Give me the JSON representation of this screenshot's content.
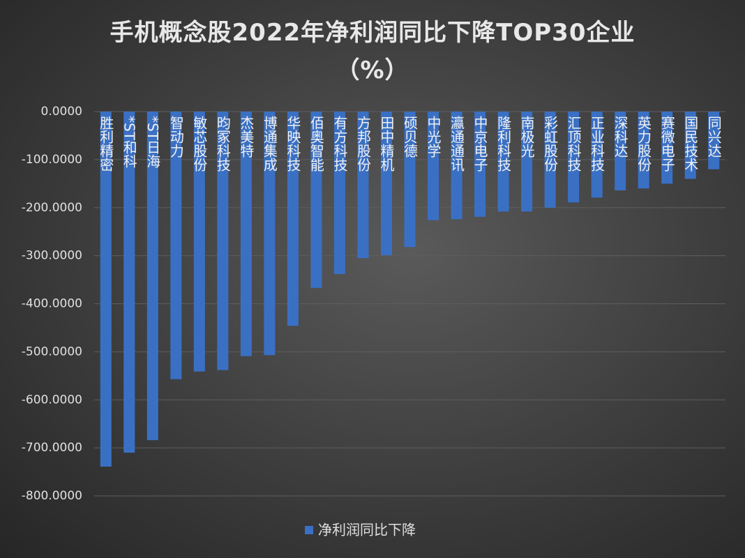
{
  "chart_data": {
    "type": "bar",
    "title": "手机概念股2022年净利润同比下降TOP30企业（%）",
    "categories": [
      "胜利精密",
      "*ST和科",
      "*ST日海",
      "智动力",
      "敏芯股份",
      "昀冢科技",
      "杰美特",
      "博通集成",
      "华映科技",
      "佰奥智能",
      "有方科技",
      "方邦股份",
      "田中精机",
      "硕贝德",
      "中光学",
      "瀛通通讯",
      "中京电子",
      "隆利科技",
      "南极光",
      "彩虹股份",
      "汇顶科技",
      "正业科技",
      "深科达",
      "英力股份",
      "赛微电子",
      "国民技术",
      "同兴达"
    ],
    "series": [
      {
        "name": "净利润同比下降",
        "color": "#3a70c4",
        "values": [
          -739,
          -710,
          -684,
          -557,
          -541,
          -538,
          -509,
          -507,
          -446,
          -367,
          -338,
          -305,
          -299,
          -282,
          -226,
          -224,
          -219,
          -208,
          -208,
          -200,
          -189,
          -179,
          -164,
          -160,
          -150,
          -140,
          -120
        ]
      }
    ],
    "ylim": [
      -800,
      0
    ],
    "yticks": [
      {
        "value": 0,
        "label": "0.0000"
      },
      {
        "value": -100,
        "label": "-100.0000"
      },
      {
        "value": -200,
        "label": "-200.0000"
      },
      {
        "value": -300,
        "label": "-300.0000"
      },
      {
        "value": -400,
        "label": "-400.0000"
      },
      {
        "value": -500,
        "label": "-500.0000"
      },
      {
        "value": -600,
        "label": "-600.0000"
      },
      {
        "value": -700,
        "label": "-700.0000"
      },
      {
        "value": -800,
        "label": "-800.0000"
      }
    ],
    "grid": true,
    "legend": "bottom"
  }
}
